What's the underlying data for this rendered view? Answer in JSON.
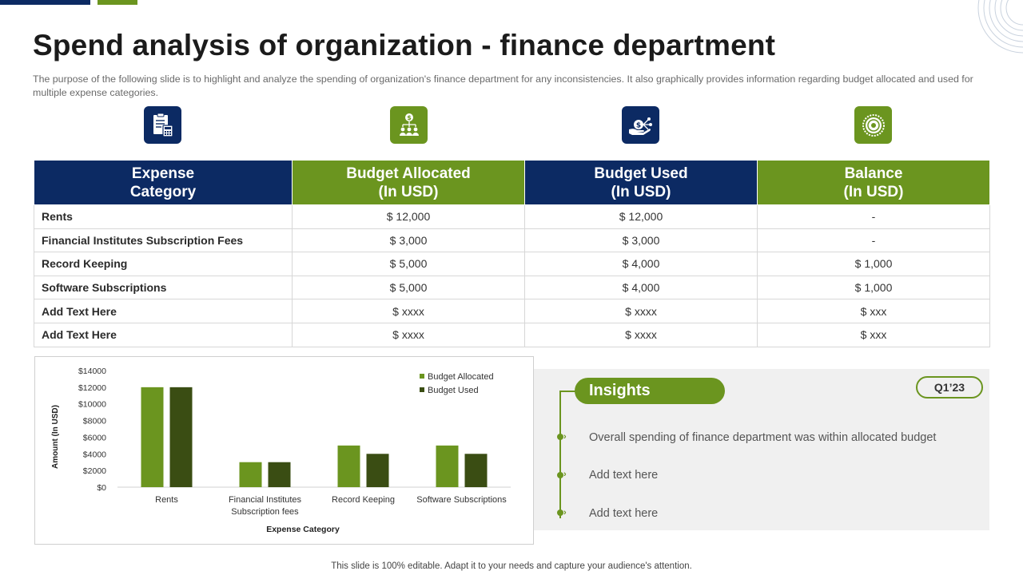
{
  "title": "Spend analysis of organization - finance department",
  "subtitle": "The purpose of the following slide is to highlight and analyze the spending of organization's finance department for any inconsistencies. It also graphically provides information regarding budget allocated and used for multiple expense categories.",
  "icons": [
    "calculator-invoice-icon",
    "dollar-team-icon",
    "money-hand-network-icon",
    "coin-icon"
  ],
  "colors": {
    "navy": "#0c2a63",
    "green": "#6b951f",
    "dark_green": "#3a4d13"
  },
  "table": {
    "headers": [
      [
        "Expense",
        "Category"
      ],
      [
        "Budget Allocated",
        "(In USD)"
      ],
      [
        "Budget Used",
        "(In USD)"
      ],
      [
        "Balance",
        "(In USD)"
      ]
    ],
    "rows": [
      [
        "Rents",
        "$ 12,000",
        "$ 12,000",
        "-"
      ],
      [
        "Financial Institutes Subscription Fees",
        "$ 3,000",
        "$ 3,000",
        "-"
      ],
      [
        "Record Keeping",
        "$ 5,000",
        "$ 4,000",
        "$ 1,000"
      ],
      [
        "Software Subscriptions",
        "$ 5,000",
        "$ 4,000",
        "$ 1,000"
      ],
      [
        "Add Text Here",
        "$ xxxx",
        "$ xxxx",
        "$ xxx"
      ],
      [
        "Add Text Here",
        "$ xxxx",
        "$ xxxx",
        "$ xxx"
      ]
    ]
  },
  "chart_data": {
    "type": "bar",
    "categories": [
      "Rents",
      "Financial Institutes Subscription fees",
      "Record Keeping",
      "Software Subscriptions"
    ],
    "category_lines": [
      [
        "Rents"
      ],
      [
        "Financial Institutes",
        "Subscription fees"
      ],
      [
        "Record Keeping"
      ],
      [
        "Software Subscriptions"
      ]
    ],
    "series": [
      {
        "name": "Budget Allocated",
        "values": [
          12000,
          3000,
          5000,
          5000
        ],
        "color": "#6b951f"
      },
      {
        "name": "Budget Used",
        "values": [
          12000,
          3000,
          4000,
          4000
        ],
        "color": "#3a4d13"
      }
    ],
    "y_ticks": [
      "$0",
      "$2000",
      "$4000",
      "$6000",
      "$8000",
      "$10000",
      "$12000",
      "$14000"
    ],
    "ylim": [
      0,
      14000
    ],
    "xlabel": "Expense Category",
    "ylabel": "Amount (In USD)",
    "legend_position": "top-right",
    "grid": false
  },
  "insights": {
    "label": "Insights",
    "quarter": "Q1’23",
    "items": [
      "Overall spending of finance department  was within allocated budget",
      "Add text here",
      "Add text here"
    ]
  },
  "footer": "This slide is 100% editable. Adapt it to your needs and capture your audience's attention."
}
